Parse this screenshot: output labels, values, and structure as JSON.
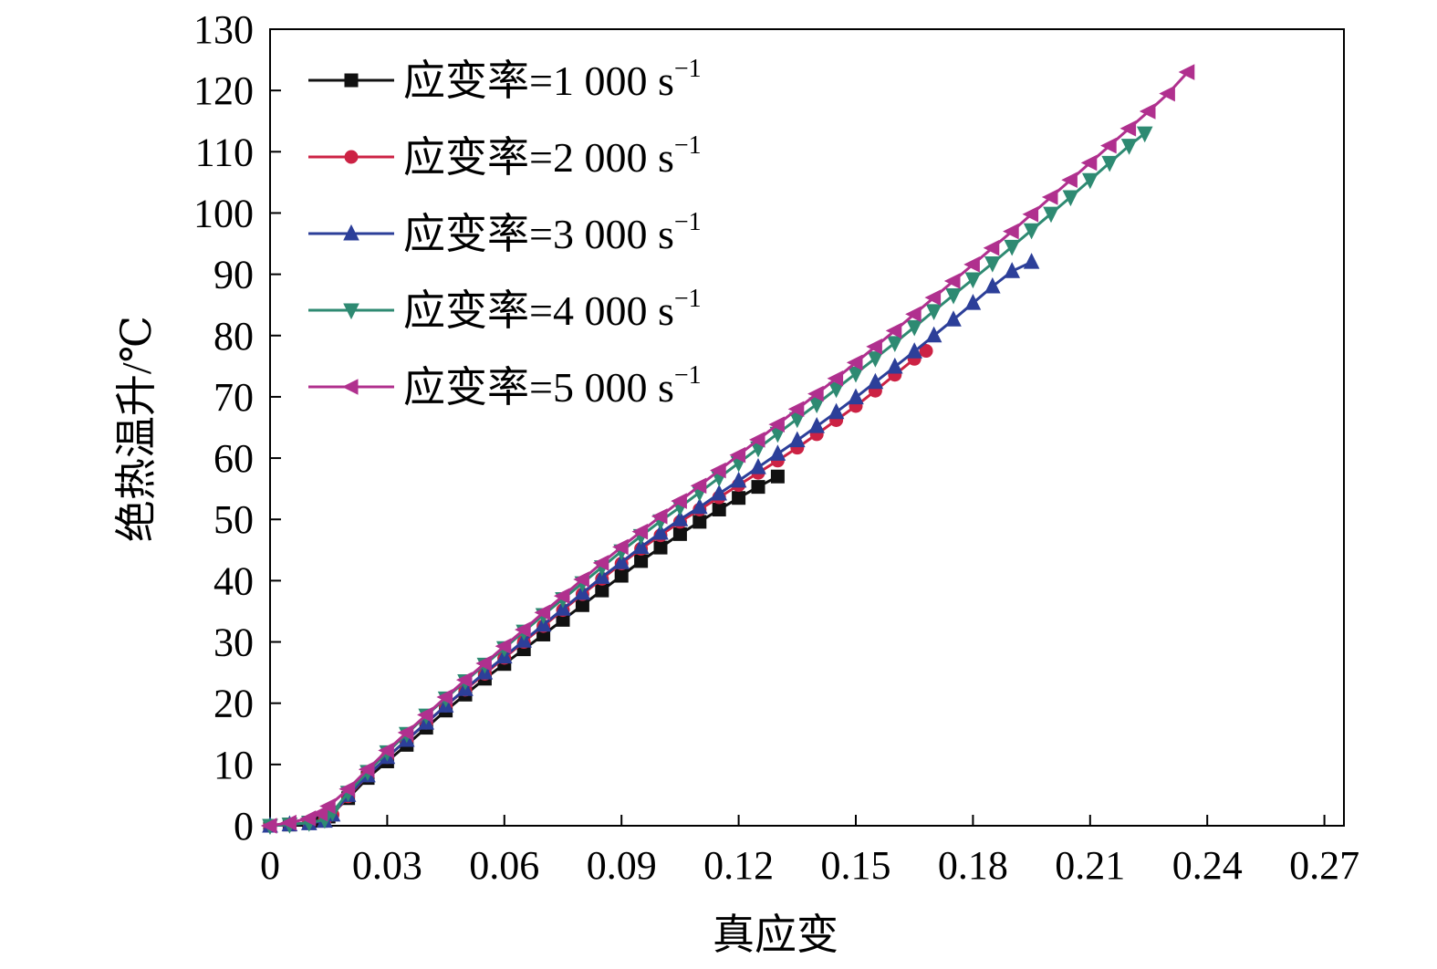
{
  "chart_data": {
    "type": "line",
    "title": "",
    "xlabel": "真应变",
    "ylabel": "绝热温升/℃",
    "xlim": [
      0,
      0.275
    ],
    "ylim": [
      0,
      130
    ],
    "x_ticks": [
      "0",
      "0.03",
      "0.06",
      "0.09",
      "0.12",
      "0.15",
      "0.18",
      "0.21",
      "0.24",
      "0.27"
    ],
    "y_ticks": [
      "0",
      "10",
      "20",
      "30",
      "40",
      "50",
      "60",
      "70",
      "80",
      "90",
      "100",
      "110",
      "120",
      "130"
    ],
    "grid": false,
    "legend_position": "top-left",
    "series": [
      {
        "name": "应变率=1 000 s",
        "name_superscript": "−1",
        "color": "#111111",
        "marker": "square",
        "x": [
          0,
          0.005,
          0.01,
          0.013,
          0.015,
          0.02,
          0.025,
          0.03,
          0.035,
          0.04,
          0.045,
          0.05,
          0.055,
          0.06,
          0.065,
          0.07,
          0.075,
          0.08,
          0.085,
          0.09,
          0.095,
          0.1,
          0.105,
          0.11,
          0.115,
          0.12,
          0.125,
          0.13
        ],
        "y": [
          0,
          0.2,
          0.5,
          0.8,
          1.5,
          4.5,
          7.8,
          10.5,
          13.2,
          16,
          18.8,
          21.4,
          24,
          26.4,
          28.8,
          31.2,
          33.6,
          36,
          38.4,
          40.8,
          43.2,
          45.4,
          47.6,
          49.6,
          51.6,
          53.5,
          55.3,
          57
        ]
      },
      {
        "name": "应变率=2 000 s",
        "name_superscript": "−1",
        "color": "#cc2244",
        "marker": "circle",
        "x": [
          0,
          0.005,
          0.01,
          0.014,
          0.016,
          0.02,
          0.025,
          0.03,
          0.035,
          0.04,
          0.045,
          0.05,
          0.055,
          0.06,
          0.065,
          0.07,
          0.075,
          0.08,
          0.085,
          0.09,
          0.095,
          0.1,
          0.105,
          0.11,
          0.115,
          0.12,
          0.125,
          0.13,
          0.135,
          0.14,
          0.145,
          0.15,
          0.155,
          0.16,
          0.165,
          0.168
        ],
        "y": [
          0,
          0.2,
          0.5,
          0.9,
          1.8,
          4.8,
          8.2,
          11.2,
          14,
          16.8,
          19.6,
          22.2,
          24.8,
          27.4,
          30,
          32.6,
          35.2,
          37.8,
          40.3,
          42.8,
          45.2,
          47.4,
          49.6,
          51.6,
          53.6,
          55.6,
          57.6,
          59.6,
          61.7,
          63.9,
          66.2,
          68.5,
          71,
          73.6,
          76.2,
          77.5
        ]
      },
      {
        "name": "应变率=3 000 s",
        "name_superscript": "−1",
        "color": "#2c3f99",
        "marker": "triangle-up",
        "x": [
          0,
          0.005,
          0.01,
          0.014,
          0.016,
          0.02,
          0.025,
          0.03,
          0.035,
          0.04,
          0.045,
          0.05,
          0.055,
          0.06,
          0.065,
          0.07,
          0.075,
          0.08,
          0.085,
          0.09,
          0.095,
          0.1,
          0.105,
          0.11,
          0.115,
          0.12,
          0.125,
          0.13,
          0.135,
          0.14,
          0.145,
          0.15,
          0.155,
          0.16,
          0.165,
          0.17,
          0.175,
          0.18,
          0.185,
          0.19,
          0.195
        ],
        "y": [
          0,
          0.2,
          0.4,
          0.8,
          1.8,
          5,
          8.2,
          11.2,
          14,
          16.8,
          19.6,
          22.3,
          25,
          27.6,
          30.2,
          32.8,
          35.4,
          38,
          40.6,
          43,
          45.5,
          47.8,
          50,
          52,
          54.2,
          56.3,
          58.5,
          60.7,
          62.9,
          65.2,
          67.5,
          69.9,
          72.4,
          74.9,
          77.4,
          80,
          82.6,
          85.3,
          88,
          90.5,
          92
        ]
      },
      {
        "name": "应变率=4 000 s",
        "name_superscript": "−1",
        "color": "#2e8a72",
        "marker": "triangle-down",
        "x": [
          0,
          0.005,
          0.01,
          0.014,
          0.016,
          0.02,
          0.025,
          0.03,
          0.035,
          0.04,
          0.045,
          0.05,
          0.055,
          0.06,
          0.065,
          0.07,
          0.075,
          0.08,
          0.085,
          0.09,
          0.095,
          0.1,
          0.105,
          0.11,
          0.115,
          0.12,
          0.125,
          0.13,
          0.135,
          0.14,
          0.145,
          0.15,
          0.155,
          0.16,
          0.165,
          0.17,
          0.175,
          0.18,
          0.185,
          0.19,
          0.195,
          0.2,
          0.205,
          0.21,
          0.215,
          0.22,
          0.224
        ],
        "y": [
          0,
          0.2,
          0.5,
          1,
          2.2,
          5.4,
          8.8,
          12,
          15,
          18,
          20.8,
          23.6,
          26.3,
          29,
          31.7,
          34.4,
          37,
          39.6,
          42.2,
          44.8,
          47.3,
          49.7,
          52,
          54.4,
          56.8,
          59.2,
          61.6,
          64,
          66.4,
          68.8,
          71.3,
          73.8,
          76.3,
          78.8,
          81.4,
          84,
          86.6,
          89.2,
          91.8,
          94.5,
          97.2,
          99.9,
          102.6,
          105.4,
          108.2,
          111,
          113
        ]
      },
      {
        "name": "应变率=5 000 s",
        "name_superscript": "−1",
        "color": "#b0308e",
        "marker": "triangle-left",
        "x": [
          0,
          0.005,
          0.01,
          0.013,
          0.015,
          0.02,
          0.025,
          0.03,
          0.035,
          0.04,
          0.045,
          0.05,
          0.055,
          0.06,
          0.065,
          0.07,
          0.075,
          0.08,
          0.085,
          0.09,
          0.095,
          0.1,
          0.105,
          0.11,
          0.115,
          0.12,
          0.125,
          0.13,
          0.135,
          0.14,
          0.145,
          0.15,
          0.155,
          0.16,
          0.165,
          0.17,
          0.175,
          0.18,
          0.185,
          0.19,
          0.195,
          0.2,
          0.205,
          0.21,
          0.215,
          0.22,
          0.225,
          0.23,
          0.235
        ],
        "y": [
          0,
          0.5,
          1.2,
          2,
          3.2,
          6,
          9.2,
          12.3,
          15.2,
          18.1,
          21,
          23.8,
          26.5,
          29.3,
          32,
          34.8,
          37.5,
          40.2,
          42.9,
          45.5,
          48,
          50.5,
          53,
          55.5,
          58,
          60.5,
          63,
          65.5,
          68,
          70.5,
          73,
          75.6,
          78.2,
          80.8,
          83.5,
          86.2,
          88.9,
          91.6,
          94.3,
          97,
          99.8,
          102.6,
          105.4,
          108.2,
          111,
          113.8,
          116.6,
          119.5,
          123
        ]
      }
    ]
  }
}
